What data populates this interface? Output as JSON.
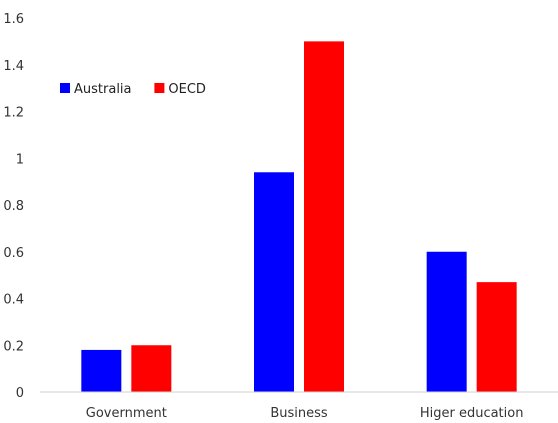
{
  "chart_data": {
    "type": "bar",
    "categories": [
      "Government",
      "Business",
      "Higer education"
    ],
    "series": [
      {
        "name": "Australia",
        "values": [
          0.18,
          0.94,
          0.6
        ],
        "color": "#0000ff"
      },
      {
        "name": "OECD",
        "values": [
          0.2,
          1.5,
          0.47
        ],
        "color": "#ff0000"
      }
    ],
    "ylim": [
      0,
      1.6
    ],
    "yticks": [
      0,
      0.2,
      0.4,
      0.6,
      0.8,
      1,
      1.2,
      1.4,
      1.6
    ],
    "ytick_labels": [
      "0",
      "0.2",
      "0.4",
      "0.6",
      "0.8",
      "1",
      "1.2",
      "1.4",
      "1.6"
    ],
    "grid": false,
    "legend_position": "top-left",
    "title": "",
    "xlabel": "",
    "ylabel": ""
  }
}
